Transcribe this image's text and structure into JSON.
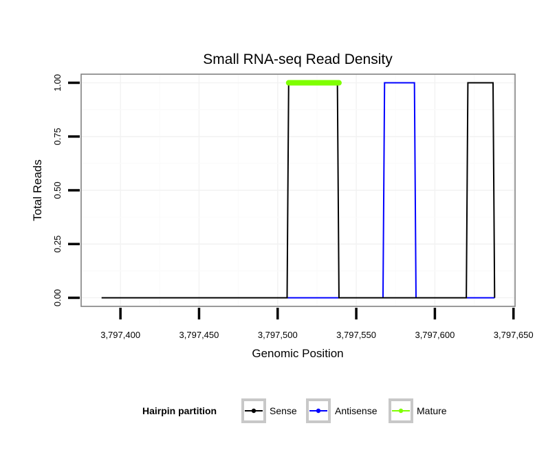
{
  "chart_data": {
    "type": "line",
    "title": "Small RNA-seq Read Density",
    "xlabel": "Genomic Position",
    "ylabel": "Total Reads",
    "xlim": [
      3797375,
      3797651
    ],
    "ylim": [
      -0.04,
      1.04
    ],
    "x_ticks": [
      3797400,
      3797450,
      3797500,
      3797550,
      3797600,
      3797650
    ],
    "x_tick_labels": [
      "3,797,400",
      "3,797,450",
      "3,797,500",
      "3,797,550",
      "3,797,600",
      "3,797,650"
    ],
    "y_ticks": [
      0,
      0.25,
      0.5,
      0.75,
      1.0
    ],
    "y_tick_labels": [
      "0.00",
      "0.25",
      "0.50",
      "0.75",
      "1.00"
    ],
    "legend": {
      "title": "Hairpin partition",
      "position": "bottom",
      "entries": [
        {
          "name": "Sense",
          "color": "#000000"
        },
        {
          "name": "Antisense",
          "color": "#0000ff"
        },
        {
          "name": "Mature",
          "color": "#7fff00"
        }
      ]
    },
    "series": [
      {
        "name": "Sense",
        "color": "#000000",
        "x": [
          3797388,
          3797506,
          3797507,
          3797538,
          3797539,
          3797620,
          3797621,
          3797637,
          3797638
        ],
        "y": [
          0,
          0,
          1,
          1,
          0,
          0,
          1,
          1,
          0
        ]
      },
      {
        "name": "Antisense",
        "color": "#0000ff",
        "x": [
          3797506,
          3797567,
          3797568,
          3797587,
          3797588,
          3797638
        ],
        "y": [
          0,
          0,
          1,
          1,
          0,
          0
        ]
      },
      {
        "name": "Mature",
        "color": "#7fff00",
        "x": [
          3797507,
          3797539
        ],
        "y": [
          1,
          1
        ]
      }
    ]
  }
}
